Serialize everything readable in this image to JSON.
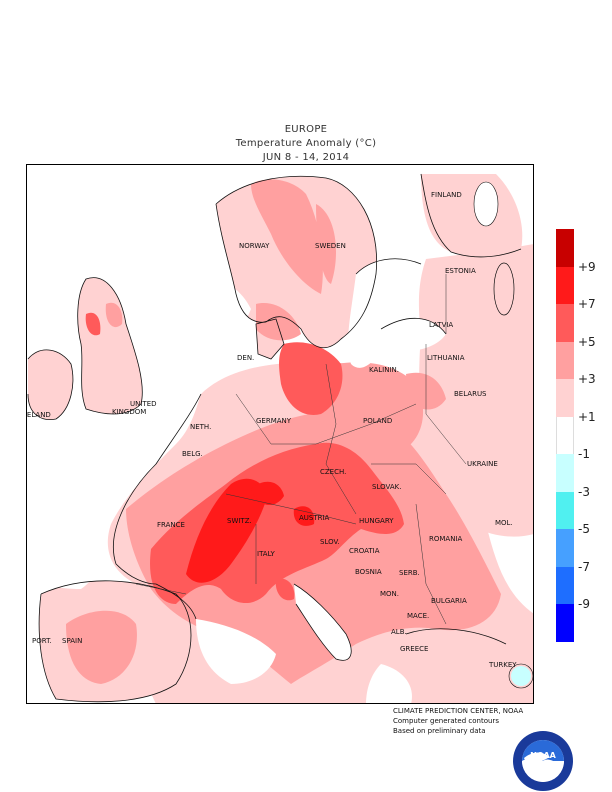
{
  "title": {
    "region": "EUROPE",
    "variable": "Temperature Anomaly (°C)",
    "period": "JUN 8 - 14, 2014"
  },
  "countries": [
    "FINLAND",
    "NORWAY",
    "SWEDEN",
    "ESTONIA",
    "LATVIA",
    "DEN.",
    "LITHUANIA",
    "KALININ.",
    "UNITED KINGDOM",
    "IRELAND",
    "NETH.",
    "BELG.",
    "GERMANY",
    "POLAND",
    "BELARUS",
    "CZECH.",
    "SLOVAK.",
    "UKRAINE",
    "FRANCE",
    "SWITZ.",
    "AUSTRIA",
    "HUNGARY",
    "MOL.",
    "ROMANIA",
    "SLOV.",
    "CROATIA",
    "ITALY",
    "BOSNIA",
    "SERB.",
    "MON.",
    "BULGARIA",
    "MACE.",
    "ALB.",
    "GREECE",
    "TURKEY",
    "PORT.",
    "SPAIN"
  ],
  "legend": [
    {
      "label": "+9",
      "color": "#c80000"
    },
    {
      "label": "+7",
      "color": "#ff1a1a"
    },
    {
      "label": "+5",
      "color": "#ff5a5a"
    },
    {
      "label": "+3",
      "color": "#ffa0a0"
    },
    {
      "label": "+1",
      "color": "#ffd2d2"
    },
    {
      "label": "-1",
      "color": "#ffffff"
    },
    {
      "label": "-3",
      "color": "#c8ffff"
    },
    {
      "label": "-5",
      "color": "#50f0f0"
    },
    {
      "label": "-7",
      "color": "#46a0ff"
    },
    {
      "label": "-9",
      "color": "#1e6eff"
    }
  ],
  "legend_bottom_color": "#0000ff",
  "credits": {
    "line1": "CLIMATE PREDICTION CENTER, NOAA",
    "line2": "Computer generated contours",
    "line3": "Based on preliminary data"
  },
  "logo": {
    "text": "NOAA",
    "ring_top": "NATIONAL OCEANIC AND ATMOSPHERIC ADMINISTRATION",
    "ring_bottom": "U.S. DEPARTMENT OF COMMERCE"
  }
}
